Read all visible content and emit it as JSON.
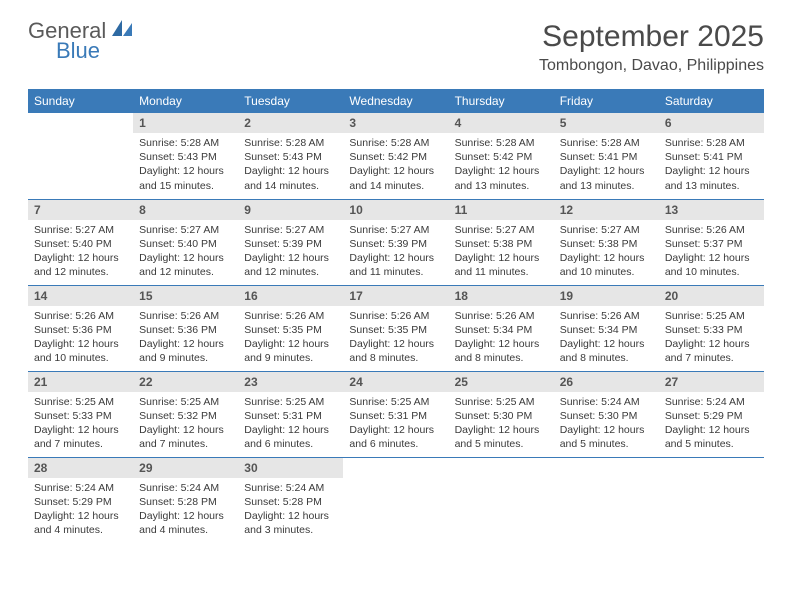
{
  "logo": {
    "text1": "General",
    "text2": "Blue"
  },
  "title": "September 2025",
  "location": "Tombongon, Davao, Philippines",
  "colors": {
    "header_bg": "#3a7ab8",
    "header_fg": "#ffffff",
    "daynum_bg": "#e6e6e6",
    "row_border": "#3a7ab8",
    "text": "#3a3a3a"
  },
  "weekdays": [
    "Sunday",
    "Monday",
    "Tuesday",
    "Wednesday",
    "Thursday",
    "Friday",
    "Saturday"
  ],
  "first_weekday_index": 1,
  "days": [
    {
      "n": 1,
      "sr": "5:28 AM",
      "ss": "5:43 PM",
      "dl": "12 hours and 15 minutes."
    },
    {
      "n": 2,
      "sr": "5:28 AM",
      "ss": "5:43 PM",
      "dl": "12 hours and 14 minutes."
    },
    {
      "n": 3,
      "sr": "5:28 AM",
      "ss": "5:42 PM",
      "dl": "12 hours and 14 minutes."
    },
    {
      "n": 4,
      "sr": "5:28 AM",
      "ss": "5:42 PM",
      "dl": "12 hours and 13 minutes."
    },
    {
      "n": 5,
      "sr": "5:28 AM",
      "ss": "5:41 PM",
      "dl": "12 hours and 13 minutes."
    },
    {
      "n": 6,
      "sr": "5:28 AM",
      "ss": "5:41 PM",
      "dl": "12 hours and 13 minutes."
    },
    {
      "n": 7,
      "sr": "5:27 AM",
      "ss": "5:40 PM",
      "dl": "12 hours and 12 minutes."
    },
    {
      "n": 8,
      "sr": "5:27 AM",
      "ss": "5:40 PM",
      "dl": "12 hours and 12 minutes."
    },
    {
      "n": 9,
      "sr": "5:27 AM",
      "ss": "5:39 PM",
      "dl": "12 hours and 12 minutes."
    },
    {
      "n": 10,
      "sr": "5:27 AM",
      "ss": "5:39 PM",
      "dl": "12 hours and 11 minutes."
    },
    {
      "n": 11,
      "sr": "5:27 AM",
      "ss": "5:38 PM",
      "dl": "12 hours and 11 minutes."
    },
    {
      "n": 12,
      "sr": "5:27 AM",
      "ss": "5:38 PM",
      "dl": "12 hours and 10 minutes."
    },
    {
      "n": 13,
      "sr": "5:26 AM",
      "ss": "5:37 PM",
      "dl": "12 hours and 10 minutes."
    },
    {
      "n": 14,
      "sr": "5:26 AM",
      "ss": "5:36 PM",
      "dl": "12 hours and 10 minutes."
    },
    {
      "n": 15,
      "sr": "5:26 AM",
      "ss": "5:36 PM",
      "dl": "12 hours and 9 minutes."
    },
    {
      "n": 16,
      "sr": "5:26 AM",
      "ss": "5:35 PM",
      "dl": "12 hours and 9 minutes."
    },
    {
      "n": 17,
      "sr": "5:26 AM",
      "ss": "5:35 PM",
      "dl": "12 hours and 8 minutes."
    },
    {
      "n": 18,
      "sr": "5:26 AM",
      "ss": "5:34 PM",
      "dl": "12 hours and 8 minutes."
    },
    {
      "n": 19,
      "sr": "5:26 AM",
      "ss": "5:34 PM",
      "dl": "12 hours and 8 minutes."
    },
    {
      "n": 20,
      "sr": "5:25 AM",
      "ss": "5:33 PM",
      "dl": "12 hours and 7 minutes."
    },
    {
      "n": 21,
      "sr": "5:25 AM",
      "ss": "5:33 PM",
      "dl": "12 hours and 7 minutes."
    },
    {
      "n": 22,
      "sr": "5:25 AM",
      "ss": "5:32 PM",
      "dl": "12 hours and 7 minutes."
    },
    {
      "n": 23,
      "sr": "5:25 AM",
      "ss": "5:31 PM",
      "dl": "12 hours and 6 minutes."
    },
    {
      "n": 24,
      "sr": "5:25 AM",
      "ss": "5:31 PM",
      "dl": "12 hours and 6 minutes."
    },
    {
      "n": 25,
      "sr": "5:25 AM",
      "ss": "5:30 PM",
      "dl": "12 hours and 5 minutes."
    },
    {
      "n": 26,
      "sr": "5:24 AM",
      "ss": "5:30 PM",
      "dl": "12 hours and 5 minutes."
    },
    {
      "n": 27,
      "sr": "5:24 AM",
      "ss": "5:29 PM",
      "dl": "12 hours and 5 minutes."
    },
    {
      "n": 28,
      "sr": "5:24 AM",
      "ss": "5:29 PM",
      "dl": "12 hours and 4 minutes."
    },
    {
      "n": 29,
      "sr": "5:24 AM",
      "ss": "5:28 PM",
      "dl": "12 hours and 4 minutes."
    },
    {
      "n": 30,
      "sr": "5:24 AM",
      "ss": "5:28 PM",
      "dl": "12 hours and 3 minutes."
    }
  ],
  "labels": {
    "sunrise": "Sunrise:",
    "sunset": "Sunset:",
    "daylight": "Daylight:"
  }
}
